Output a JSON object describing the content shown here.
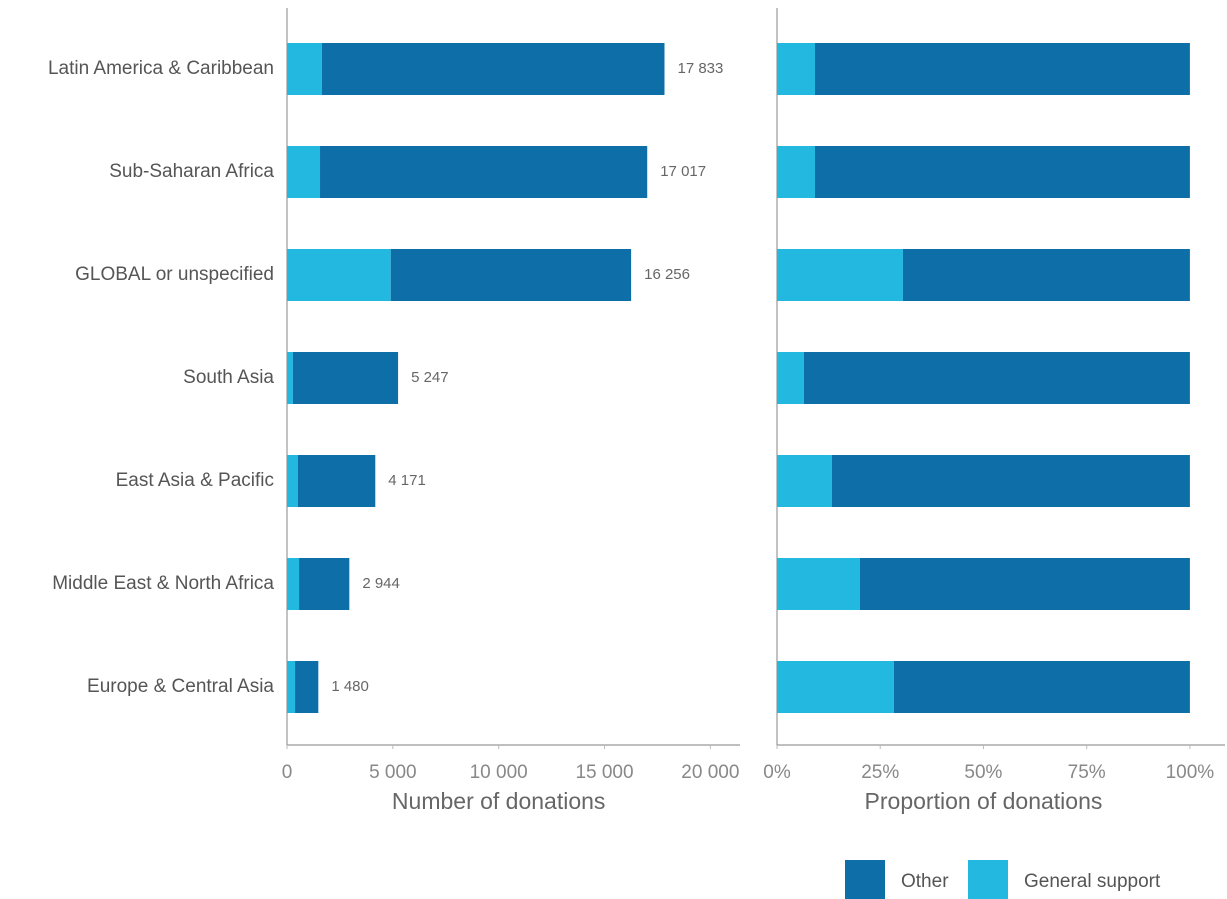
{
  "chart_data": [
    {
      "type": "bar",
      "orientation": "horizontal",
      "stacked": true,
      "x_label": "Number of donations",
      "categories": [
        "Latin America & Caribbean",
        "Sub-Saharan Africa",
        "GLOBAL or unspecified",
        "South Asia",
        "East Asia & Pacific",
        "Middle East & North Africa",
        "Europe & Central Asia"
      ],
      "series": [
        {
          "color": "#22b8e0",
          "values": [
            1650,
            1560,
            4900,
            280,
            520,
            570,
            380
          ]
        },
        {
          "color": "#0e6ea8",
          "values": [
            16183,
            15457,
            11356,
            4967,
            3651,
            2374,
            1100
          ]
        }
      ],
      "totals": [
        17833,
        17017,
        16256,
        5247,
        4171,
        2944,
        1480
      ],
      "total_labels": [
        "17 833",
        "17 017",
        "16 256",
        "5 247",
        "4 171",
        "2 944",
        "1 480"
      ],
      "xlim": [
        0,
        21400
      ],
      "xticks": [
        0,
        {
          "value": 5000,
          "label": "5 000"
        },
        {
          "value": 10000,
          "label": "10 000"
        },
        {
          "value": 15000,
          "label": "15 000"
        },
        {
          "value": 20000,
          "label": "20 000"
        }
      ]
    },
    {
      "type": "bar",
      "orientation": "horizontal",
      "stacked": true,
      "x_label": "Proportion of donations",
      "series": [
        {
          "name": "General support",
          "color": "#22b8e0",
          "values": [
            9.2,
            9.2,
            30.5,
            6.5,
            13.3,
            20.1,
            28.3
          ]
        },
        {
          "name": "Other",
          "color": "#0e6ea8",
          "values": [
            90.8,
            90.8,
            69.5,
            93.5,
            86.7,
            79.9,
            71.7
          ]
        }
      ],
      "xlim": [
        0,
        108.5
      ],
      "xticks": [
        {
          "value": 0,
          "label": "0%"
        },
        {
          "value": 25,
          "label": "25%"
        },
        {
          "value": 50,
          "label": "50%"
        },
        {
          "value": 75,
          "label": "75%"
        },
        {
          "value": 100,
          "label": "100%"
        }
      ]
    }
  ]
}
